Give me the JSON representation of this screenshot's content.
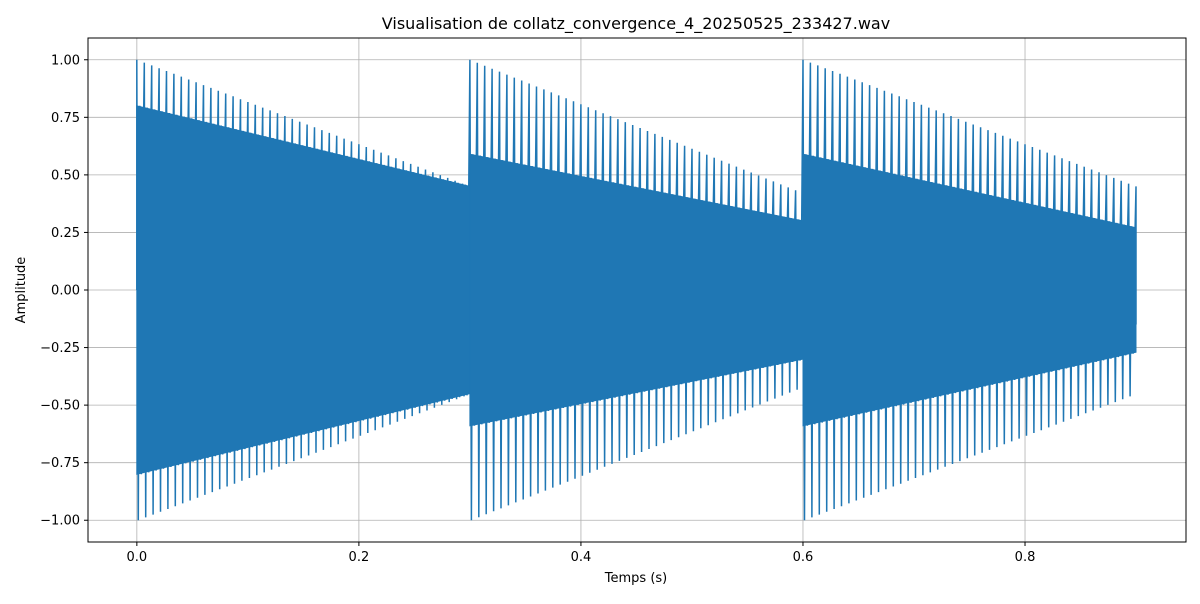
{
  "chart_data": {
    "type": "line",
    "title": "Visualisation de collatz_convergence_4_20250525_233427.wav",
    "xlabel": "Temps (s)",
    "ylabel": "Amplitude",
    "xlim": [
      -0.044,
      0.945
    ],
    "ylim": [
      -1.0945,
      1.0945
    ],
    "xticks": [
      0.0,
      0.2,
      0.4,
      0.6,
      0.8
    ],
    "xtick_labels": [
      "0.0",
      "0.2",
      "0.4",
      "0.6",
      "0.8"
    ],
    "yticks": [
      1.0,
      0.75,
      0.5,
      0.25,
      0.0,
      -0.25,
      -0.5,
      -0.75,
      -1.0
    ],
    "ytick_labels": [
      "1.00",
      "0.75",
      "0.50",
      "0.25",
      "0.00",
      "−0.25",
      "−0.50",
      "−0.75",
      "−1.00"
    ],
    "grid": true,
    "series": [
      {
        "color": "#1f77b4",
        "segments": [
          {
            "start": 0.0,
            "end": 0.3,
            "env_start": 1.0,
            "env_end": 0.45,
            "base_start": 0.8,
            "base_end": 0.45
          },
          {
            "start": 0.3,
            "end": 0.6,
            "env_start": 1.0,
            "env_end": 0.42,
            "base_start": 0.59,
            "base_end": 0.3
          },
          {
            "start": 0.6,
            "end": 0.9,
            "env_start": 1.0,
            "env_end": 0.45,
            "base_start": 0.59,
            "base_end": 0.27
          }
        ],
        "final_value": -0.15
      }
    ]
  },
  "colors": {
    "line": "#1f77b4",
    "grid": "#b0b0b0",
    "axes": "#000000",
    "background": "#ffffff"
  }
}
